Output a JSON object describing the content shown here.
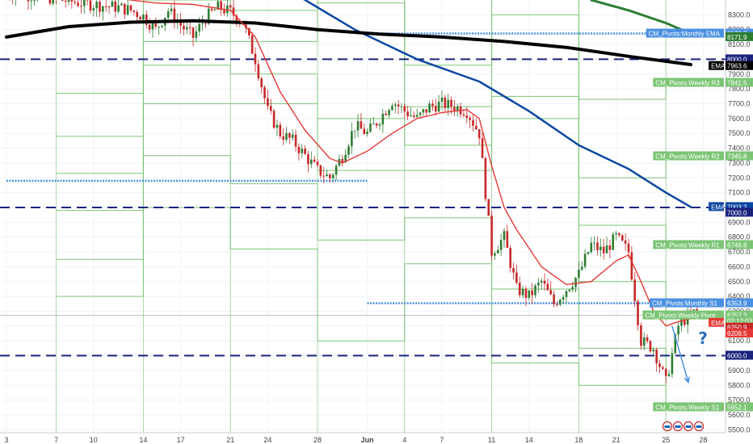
{
  "colors": {
    "candle_up": "#2e7d32",
    "candle_down": "#c62828",
    "ema_fast": "#e53935",
    "ema_slow_blue": "#0d47a1",
    "ema_black": "#000000",
    "ema_green": "#2e7d32",
    "pivot_green": "#7cc576",
    "monthly_blue": "#4a90e2",
    "round_level": "#1a237e",
    "price_line": "#888888"
  },
  "chart_data": {
    "type": "candlestick",
    "ylim": [
      5480,
      8400
    ],
    "y_ticks": [
      8300,
      8200,
      8100,
      8000,
      7900,
      7800,
      7700,
      7600,
      7500,
      7400,
      7300,
      7200,
      7100,
      7000,
      6900,
      6800,
      6700,
      6600,
      6500,
      6400,
      6300,
      6200,
      6100,
      6000,
      5900,
      5800,
      5700,
      5600,
      5500
    ],
    "x_ticks": [
      {
        "label": "3",
        "day": 0
      },
      {
        "label": "7",
        "day": 4
      },
      {
        "label": "10",
        "day": 7
      },
      {
        "label": "14",
        "day": 11
      },
      {
        "label": "17",
        "day": 14
      },
      {
        "label": "21",
        "day": 18
      },
      {
        "label": "24",
        "day": 21
      },
      {
        "label": "28",
        "day": 25
      },
      {
        "label": "Jun",
        "day": 29,
        "bold": true
      },
      {
        "label": "4",
        "day": 32
      },
      {
        "label": "7",
        "day": 35
      },
      {
        "label": "11",
        "day": 39
      },
      {
        "label": "14",
        "day": 42
      },
      {
        "label": "18",
        "day": 46
      },
      {
        "label": "21",
        "day": 49
      },
      {
        "label": "25",
        "day": 53
      },
      {
        "label": "28",
        "day": 56
      },
      {
        "label": "Jul",
        "day": 59,
        "bold": true
      }
    ],
    "close_path": [
      {
        "day": 0,
        "v": 8450
      },
      {
        "day": 3,
        "v": 8420
      },
      {
        "day": 6,
        "v": 8380
      },
      {
        "day": 9,
        "v": 8350
      },
      {
        "day": 10,
        "v": 8330
      },
      {
        "day": 11,
        "v": 8290
      },
      {
        "day": 12,
        "v": 8200
      },
      {
        "day": 13,
        "v": 8330
      },
      {
        "day": 14,
        "v": 8230
      },
      {
        "day": 15,
        "v": 8150
      },
      {
        "day": 16,
        "v": 8280
      },
      {
        "day": 17,
        "v": 8350
      },
      {
        "day": 18,
        "v": 8320
      },
      {
        "day": 19,
        "v": 8250
      },
      {
        "day": 20,
        "v": 8000
      },
      {
        "day": 21,
        "v": 7650
      },
      {
        "day": 22,
        "v": 7500
      },
      {
        "day": 23,
        "v": 7450
      },
      {
        "day": 24,
        "v": 7350
      },
      {
        "day": 25,
        "v": 7250
      },
      {
        "day": 26,
        "v": 7200
      },
      {
        "day": 27,
        "v": 7350
      },
      {
        "day": 28,
        "v": 7550
      },
      {
        "day": 29,
        "v": 7500
      },
      {
        "day": 30,
        "v": 7600
      },
      {
        "day": 31,
        "v": 7720
      },
      {
        "day": 32,
        "v": 7650
      },
      {
        "day": 33,
        "v": 7600
      },
      {
        "day": 34,
        "v": 7680
      },
      {
        "day": 35,
        "v": 7700
      },
      {
        "day": 36,
        "v": 7680
      },
      {
        "day": 37,
        "v": 7650
      },
      {
        "day": 38,
        "v": 7500
      },
      {
        "day": 39,
        "v": 6700
      },
      {
        "day": 40,
        "v": 6800
      },
      {
        "day": 41,
        "v": 6450
      },
      {
        "day": 42,
        "v": 6400
      },
      {
        "day": 43,
        "v": 6500
      },
      {
        "day": 44,
        "v": 6350
      },
      {
        "day": 45,
        "v": 6450
      },
      {
        "day": 46,
        "v": 6550
      },
      {
        "day": 47,
        "v": 6750
      },
      {
        "day": 48,
        "v": 6700
      },
      {
        "day": 49,
        "v": 6800
      },
      {
        "day": 50,
        "v": 6700
      },
      {
        "day": 51,
        "v": 6100
      },
      {
        "day": 52,
        "v": 6050
      },
      {
        "day": 53,
        "v": 5820
      },
      {
        "day": 54,
        "v": 6200
      },
      {
        "day": 55,
        "v": 6290
      }
    ],
    "ema_fast": [
      {
        "day": 0,
        "v": 8450
      },
      {
        "day": 8,
        "v": 8420
      },
      {
        "day": 12,
        "v": 8380
      },
      {
        "day": 15,
        "v": 8370
      },
      {
        "day": 18,
        "v": 8330
      },
      {
        "day": 20,
        "v": 8150
      },
      {
        "day": 22,
        "v": 7780
      },
      {
        "day": 24,
        "v": 7520
      },
      {
        "day": 26,
        "v": 7330
      },
      {
        "day": 27,
        "v": 7300
      },
      {
        "day": 29,
        "v": 7380
      },
      {
        "day": 31,
        "v": 7500
      },
      {
        "day": 33,
        "v": 7600
      },
      {
        "day": 35,
        "v": 7640
      },
      {
        "day": 37,
        "v": 7660
      },
      {
        "day": 38,
        "v": 7600
      },
      {
        "day": 39,
        "v": 7280
      },
      {
        "day": 40,
        "v": 7000
      },
      {
        "day": 41,
        "v": 6850
      },
      {
        "day": 43,
        "v": 6600
      },
      {
        "day": 45,
        "v": 6480
      },
      {
        "day": 47,
        "v": 6500
      },
      {
        "day": 49,
        "v": 6640
      },
      {
        "day": 50,
        "v": 6680
      },
      {
        "day": 51,
        "v": 6500
      },
      {
        "day": 52,
        "v": 6300
      },
      {
        "day": 53,
        "v": 6200
      },
      {
        "day": 54,
        "v": 6230
      },
      {
        "day": 55,
        "v": 6250
      }
    ],
    "ema_slow": [
      {
        "day": 15,
        "v": 8900
      },
      {
        "day": 22,
        "v": 8500
      },
      {
        "day": 28,
        "v": 8200
      },
      {
        "day": 33,
        "v": 8000
      },
      {
        "day": 38,
        "v": 7850
      },
      {
        "day": 42,
        "v": 7650
      },
      {
        "day": 46,
        "v": 7420
      },
      {
        "day": 50,
        "v": 7260
      },
      {
        "day": 53,
        "v": 7100
      },
      {
        "day": 55,
        "v": 7003
      }
    ],
    "ema_black": [
      {
        "day": 0,
        "v": 8150
      },
      {
        "day": 5,
        "v": 8220
      },
      {
        "day": 10,
        "v": 8250
      },
      {
        "day": 15,
        "v": 8260
      },
      {
        "day": 20,
        "v": 8245
      },
      {
        "day": 25,
        "v": 8200
      },
      {
        "day": 30,
        "v": 8170
      },
      {
        "day": 35,
        "v": 8150
      },
      {
        "day": 40,
        "v": 8120
      },
      {
        "day": 45,
        "v": 8080
      },
      {
        "day": 50,
        "v": 8020
      },
      {
        "day": 55,
        "v": 7964
      }
    ],
    "ema_green": [
      {
        "day": 47,
        "v": 8400
      },
      {
        "day": 50,
        "v": 8330
      },
      {
        "day": 53,
        "v": 8245
      },
      {
        "day": 55,
        "v": 8173
      }
    ],
    "round_levels": [
      8000,
      7000,
      6000
    ],
    "monthly_levels": [
      {
        "value": 8173.7,
        "from_day": 29,
        "to_day": 55
      },
      {
        "value": 7180,
        "from_day": 0,
        "to_day": 29
      },
      {
        "value": 6353.9,
        "from_day": 29,
        "to_day": 55
      }
    ],
    "weekly_pivots": {
      "week_starts": [
        0,
        4,
        11,
        18,
        25,
        32,
        39,
        46,
        53,
        56
      ],
      "R3": [
        null,
        7770,
        8400,
        8330,
        8700,
        7960,
        8600,
        7730,
        7841.5
      ],
      "R2": [
        null,
        7480,
        8120,
        8120,
        8380,
        7680,
        8300,
        7200,
        7345.8
      ],
      "R1": [
        null,
        7230,
        7960,
        7900,
        7600,
        7420,
        7750,
        6880,
        6746.8
      ],
      "P": [
        null,
        6980,
        7700,
        7700,
        7250,
        7250,
        7600,
        6500,
        6252.3
      ],
      "S1": [
        null,
        6650,
        7350,
        7160,
        6780,
        6930,
        6450,
        6050,
        5652.1
      ],
      "S2": [
        null,
        6400,
        7000,
        6720,
        6100,
        6620,
        5950,
        5800,
        null
      ]
    },
    "arrow": {
      "from_day": 53.5,
      "from_v": 6200,
      "to_day": 54.8,
      "to_v": 5820
    },
    "price_axis_tags": [
      {
        "label": "8173.7",
        "value": 8173.7,
        "color": "#4a90e2"
      },
      {
        "label": "8171.9",
        "value": 8150,
        "color": "#2e7d32"
      },
      {
        "label": "8000.0",
        "value": 8000,
        "color": "#1a237e"
      },
      {
        "label": "7963.6",
        "value": 7955,
        "color": "#000000"
      },
      {
        "label": "7841.5",
        "value": 7841.5,
        "color": "#7cc576"
      },
      {
        "label": "7345.8",
        "value": 7345.8,
        "color": "#7cc576"
      },
      {
        "label": "7003.2",
        "value": 7003.2,
        "color": "#0d47a1"
      },
      {
        "label": "7000.0",
        "value": 6965,
        "color": "#1a237e"
      },
      {
        "label": "6746.8",
        "value": 6746.8,
        "color": "#7cc576"
      },
      {
        "label": "6353.9",
        "value": 6353.9,
        "color": "#4a90e2"
      },
      {
        "label": "6252.3",
        "value": 6272,
        "color": "#7cc576"
      },
      {
        "label": "02:12:03",
        "value": 6234,
        "color": "#7cc576"
      },
      {
        "label": "6250.9",
        "value": 6190,
        "color": "#c62828"
      },
      {
        "label": "6208.5",
        "value": 6150,
        "color": "#e53935"
      },
      {
        "label": "6000.0",
        "value": 6000,
        "color": "#1a237e"
      },
      {
        "label": "5652.1",
        "value": 5652.1,
        "color": "#7cc576"
      }
    ],
    "line_labels": [
      {
        "label": "CM_Pivots:Monthly EMA",
        "value": 8173.7,
        "color": "#4a90e2"
      },
      {
        "label": "EMA",
        "value": 7955,
        "color": "#000000"
      },
      {
        "label": "CM_Pivots:Weekly R3",
        "value": 7841.5,
        "color": "#7cc576"
      },
      {
        "label": "CM_Pivots:Weekly R2",
        "value": 7345.8,
        "color": "#7cc576"
      },
      {
        "label": "EMA",
        "value": 7003.2,
        "color": "#0d47a1"
      },
      {
        "label": "CM_Pivots:Weekly R1",
        "value": 6746.8,
        "color": "#7cc576"
      },
      {
        "label": "CM_Pivots:Monthly S1",
        "value": 6353.9,
        "color": "#4a90e2"
      },
      {
        "label": "CM_Pivots:Weekly Pivot",
        "value": 6272,
        "color": "#7cc576"
      },
      {
        "label": "EMA",
        "value": 6222,
        "color": "#e53935"
      },
      {
        "label": "CM_Pivots:Weekly S1",
        "value": 5652.1,
        "color": "#7cc576"
      }
    ],
    "annotation": "?"
  }
}
